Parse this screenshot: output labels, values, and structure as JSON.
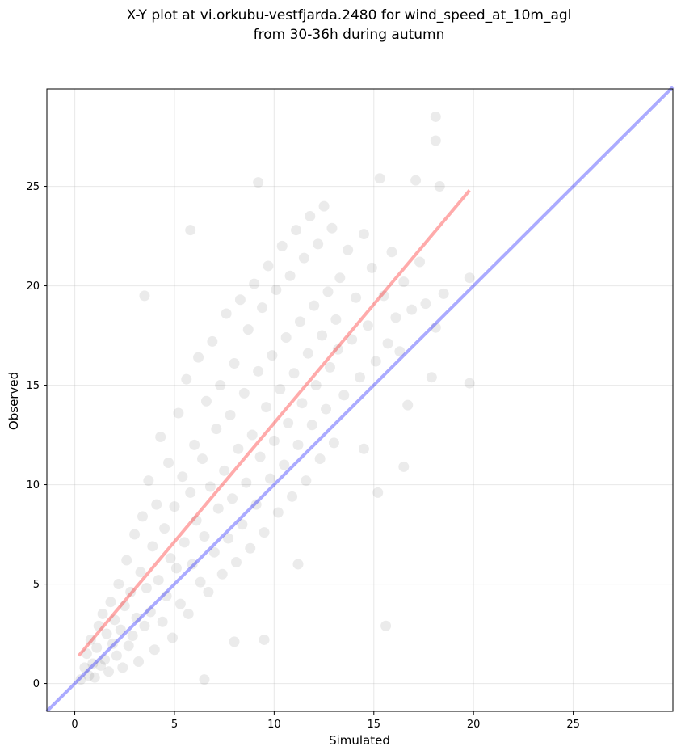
{
  "chart_data": {
    "type": "scatter",
    "title_lines": [
      "X-Y plot at vi.orkubu-vestfjarda.2480 for wind_speed_at_10m_agl",
      "from 30-36h during autumn"
    ],
    "xlabel": "Simulated",
    "ylabel": "Observed",
    "xlim": [
      -1.4,
      30
    ],
    "ylim": [
      -1.4,
      29.9
    ],
    "xticks": [
      0,
      5,
      10,
      15,
      20,
      25
    ],
    "yticks": [
      0,
      5,
      10,
      15,
      20,
      25
    ],
    "xtick_labels": [
      "0",
      "5",
      "10",
      "15",
      "20",
      "25"
    ],
    "ytick_labels": [
      "0",
      "5",
      "10",
      "15",
      "20",
      "25"
    ],
    "grid": true,
    "point_color": "#000000",
    "point_alpha": 0.08,
    "reference_lines": [
      {
        "kind": "identity",
        "color": "#0000ff",
        "x": [
          -1.4,
          30
        ],
        "y": [
          -1.4,
          30
        ]
      },
      {
        "kind": "regression",
        "color": "#ff0000",
        "x": [
          0.2,
          19.8
        ],
        "y": [
          1.4,
          24.8
        ]
      }
    ],
    "series": [
      {
        "points": [
          [
            0.3,
            0.2
          ],
          [
            0.5,
            0.8
          ],
          [
            0.6,
            1.5
          ],
          [
            0.7,
            0.4
          ],
          [
            0.8,
            2.2
          ],
          [
            0.9,
            1.0
          ],
          [
            1.0,
            0.3
          ],
          [
            1.1,
            1.8
          ],
          [
            1.2,
            2.9
          ],
          [
            1.3,
            0.9
          ],
          [
            1.4,
            3.5
          ],
          [
            1.5,
            1.2
          ],
          [
            1.6,
            2.5
          ],
          [
            1.7,
            0.6
          ],
          [
            1.8,
            4.1
          ],
          [
            1.9,
            2.0
          ],
          [
            2.0,
            3.2
          ],
          [
            2.1,
            1.4
          ],
          [
            2.2,
            5.0
          ],
          [
            2.3,
            2.7
          ],
          [
            2.4,
            0.8
          ],
          [
            2.5,
            3.9
          ],
          [
            2.6,
            6.2
          ],
          [
            2.7,
            1.9
          ],
          [
            2.8,
            4.6
          ],
          [
            2.9,
            2.4
          ],
          [
            3.0,
            7.5
          ],
          [
            3.1,
            3.3
          ],
          [
            3.2,
            1.1
          ],
          [
            3.3,
            5.6
          ],
          [
            3.4,
            8.4
          ],
          [
            3.5,
            2.9
          ],
          [
            3.6,
            4.8
          ],
          [
            3.7,
            10.2
          ],
          [
            3.8,
            3.6
          ],
          [
            3.9,
            6.9
          ],
          [
            4.0,
            1.7
          ],
          [
            4.1,
            9.0
          ],
          [
            4.2,
            5.2
          ],
          [
            4.3,
            12.4
          ],
          [
            4.4,
            3.1
          ],
          [
            4.5,
            7.8
          ],
          [
            4.6,
            4.4
          ],
          [
            4.7,
            11.1
          ],
          [
            4.8,
            6.3
          ],
          [
            4.9,
            2.3
          ],
          [
            5.0,
            8.9
          ],
          [
            5.1,
            5.8
          ],
          [
            5.2,
            13.6
          ],
          [
            5.3,
            4.0
          ],
          [
            5.4,
            10.4
          ],
          [
            5.5,
            7.1
          ],
          [
            5.6,
            15.3
          ],
          [
            5.7,
            3.5
          ],
          [
            5.8,
            9.6
          ],
          [
            5.9,
            6.0
          ],
          [
            6.0,
            12.0
          ],
          [
            6.1,
            8.2
          ],
          [
            6.2,
            16.4
          ],
          [
            6.3,
            5.1
          ],
          [
            6.4,
            11.3
          ],
          [
            6.5,
            7.4
          ],
          [
            6.6,
            14.2
          ],
          [
            6.7,
            4.6
          ],
          [
            6.8,
            9.9
          ],
          [
            6.9,
            17.2
          ],
          [
            7.0,
            6.6
          ],
          [
            7.1,
            12.8
          ],
          [
            7.2,
            8.8
          ],
          [
            7.3,
            15.0
          ],
          [
            7.4,
            5.5
          ],
          [
            7.5,
            10.7
          ],
          [
            7.6,
            18.6
          ],
          [
            7.7,
            7.3
          ],
          [
            7.8,
            13.5
          ],
          [
            7.9,
            9.3
          ],
          [
            8.0,
            16.1
          ],
          [
            8.1,
            6.1
          ],
          [
            8.2,
            11.8
          ],
          [
            8.3,
            19.3
          ],
          [
            8.4,
            8.0
          ],
          [
            8.5,
            14.6
          ],
          [
            8.6,
            10.1
          ],
          [
            8.7,
            17.8
          ],
          [
            8.8,
            6.8
          ],
          [
            8.9,
            12.5
          ],
          [
            9.0,
            20.1
          ],
          [
            9.1,
            9.0
          ],
          [
            9.2,
            15.7
          ],
          [
            9.3,
            11.4
          ],
          [
            9.4,
            18.9
          ],
          [
            9.5,
            7.6
          ],
          [
            9.6,
            13.9
          ],
          [
            9.7,
            21.0
          ],
          [
            9.8,
            10.3
          ],
          [
            9.9,
            16.5
          ],
          [
            10.0,
            12.2
          ],
          [
            10.1,
            19.8
          ],
          [
            10.2,
            8.6
          ],
          [
            10.3,
            14.8
          ],
          [
            10.4,
            22.0
          ],
          [
            10.5,
            11.0
          ],
          [
            10.6,
            17.4
          ],
          [
            10.7,
            13.1
          ],
          [
            10.8,
            20.5
          ],
          [
            10.9,
            9.4
          ],
          [
            11.0,
            15.6
          ],
          [
            11.1,
            22.8
          ],
          [
            11.2,
            12.0
          ],
          [
            11.3,
            18.2
          ],
          [
            11.4,
            14.1
          ],
          [
            11.5,
            21.4
          ],
          [
            11.6,
            10.2
          ],
          [
            11.7,
            16.6
          ],
          [
            11.8,
            23.5
          ],
          [
            11.9,
            13.0
          ],
          [
            12.0,
            19.0
          ],
          [
            12.1,
            15.0
          ],
          [
            12.2,
            22.1
          ],
          [
            12.3,
            11.3
          ],
          [
            12.4,
            17.5
          ],
          [
            12.5,
            24.0
          ],
          [
            12.6,
            13.8
          ],
          [
            12.7,
            19.7
          ],
          [
            12.8,
            15.9
          ],
          [
            12.9,
            22.9
          ],
          [
            13.0,
            12.1
          ],
          [
            13.1,
            18.3
          ],
          [
            13.2,
            16.8
          ],
          [
            13.3,
            20.4
          ],
          [
            13.5,
            14.5
          ],
          [
            13.7,
            21.8
          ],
          [
            13.9,
            17.3
          ],
          [
            14.1,
            19.4
          ],
          [
            14.3,
            15.4
          ],
          [
            14.5,
            22.6
          ],
          [
            14.7,
            18.0
          ],
          [
            14.9,
            20.9
          ],
          [
            15.1,
            16.2
          ],
          [
            15.3,
            25.4
          ],
          [
            15.5,
            19.5
          ],
          [
            15.7,
            17.1
          ],
          [
            15.9,
            21.7
          ],
          [
            16.1,
            18.4
          ],
          [
            16.3,
            16.7
          ],
          [
            16.5,
            20.2
          ],
          [
            16.7,
            14.0
          ],
          [
            16.9,
            18.8
          ],
          [
            17.1,
            25.3
          ],
          [
            17.3,
            21.2
          ],
          [
            17.6,
            19.1
          ],
          [
            17.9,
            15.4
          ],
          [
            18.1,
            17.9
          ],
          [
            18.3,
            25.0
          ],
          [
            18.5,
            19.6
          ],
          [
            18.1,
            28.5
          ],
          [
            18.1,
            27.3
          ],
          [
            19.8,
            20.4
          ],
          [
            19.8,
            15.1
          ],
          [
            15.6,
            2.9
          ],
          [
            9.5,
            2.2
          ],
          [
            11.2,
            6.0
          ],
          [
            3.5,
            19.5
          ],
          [
            5.8,
            22.8
          ],
          [
            9.2,
            25.2
          ],
          [
            16.5,
            10.9
          ],
          [
            15.2,
            9.6
          ],
          [
            14.5,
            11.8
          ],
          [
            6.5,
            0.2
          ],
          [
            8.0,
            2.1
          ]
        ]
      }
    ]
  }
}
